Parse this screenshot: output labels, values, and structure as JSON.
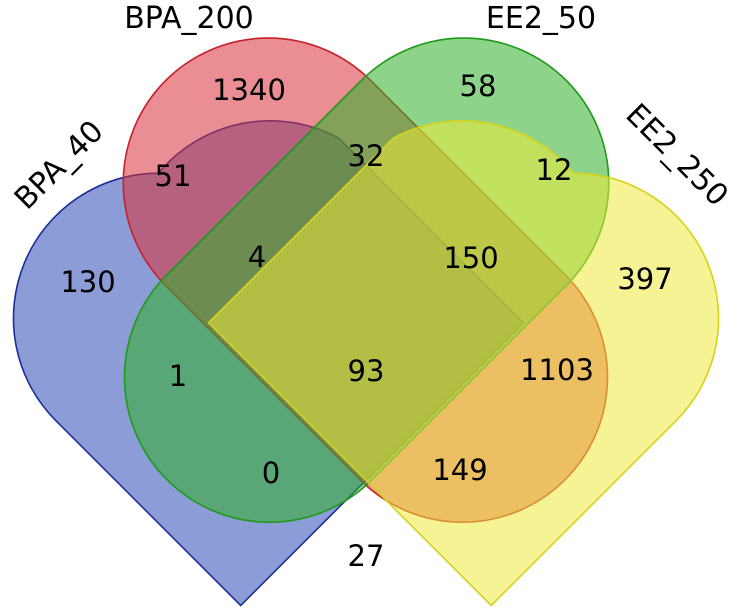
{
  "sets": [
    {
      "id": "bpa40",
      "label": "BPA_40",
      "fill": "#2e4ab4",
      "stroke": "#1c2f99"
    },
    {
      "id": "bpa200",
      "label": "BPA_200",
      "fill": "#d8313a",
      "stroke": "#c4212a"
    },
    {
      "id": "ee250",
      "label": "EE2_50",
      "fill": "#2fb02a",
      "stroke": "#1f9a1a"
    },
    {
      "id": "ee2250",
      "label": "EE2_250",
      "fill": "#ecea3a",
      "stroke": "#d6d21c"
    }
  ],
  "regions": [
    {
      "id": "bpa200-only",
      "count": "1340"
    },
    {
      "id": "ee250-only",
      "count": "58"
    },
    {
      "id": "bpa40-only",
      "count": "130"
    },
    {
      "id": "ee2250-only",
      "count": "397"
    },
    {
      "id": "bpa40-bpa200",
      "count": "51"
    },
    {
      "id": "bpa200-ee250",
      "count": "32"
    },
    {
      "id": "ee250-ee2250",
      "count": "12"
    },
    {
      "id": "bpa40-bpa200-ee250",
      "count": "4"
    },
    {
      "id": "bpa200-ee250-ee2250",
      "count": "150"
    },
    {
      "id": "bpa40-ee250",
      "count": "1"
    },
    {
      "id": "all-four",
      "count": "93"
    },
    {
      "id": "bpa200-ee2250",
      "count": "1103"
    },
    {
      "id": "bpa40-ee250-ee2250",
      "count": "0"
    },
    {
      "id": "bpa40-bpa200-ee2250",
      "count": "149"
    },
    {
      "id": "bpa40-ee2250",
      "count": "27"
    }
  ]
}
